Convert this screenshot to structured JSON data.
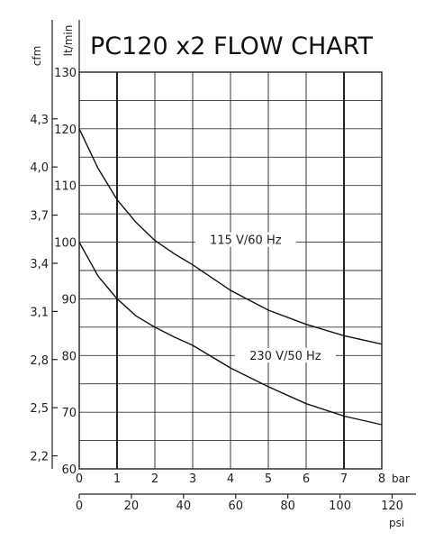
{
  "chart_data": {
    "type": "line",
    "title": "PC120 x2 FLOW CHART",
    "primary_x_axis": {
      "unit": "bar",
      "range": [
        0,
        8
      ],
      "ticks": [
        "0",
        "1",
        "2",
        "3",
        "4",
        "5",
        "6",
        "7",
        "8"
      ]
    },
    "secondary_x_axis": {
      "unit": "psi",
      "ticks": [
        "0",
        "20",
        "40",
        "60",
        "80",
        "100",
        "120"
      ]
    },
    "primary_y_axis": {
      "unit": "lt/min",
      "range": [
        60,
        130
      ],
      "ticks": [
        "60",
        "70",
        "80",
        "90",
        "100",
        "110",
        "120",
        "130"
      ]
    },
    "secondary_y_axis": {
      "unit": "cfm",
      "ticks": [
        "2,2",
        "2,5",
        "2,8",
        "3,1",
        "3,4",
        "3,7",
        "4,0",
        "4,3"
      ]
    },
    "grid": true,
    "series": [
      {
        "name": "115 V/60 Hz",
        "x": [
          0,
          0.5,
          1,
          1.5,
          2,
          2.5,
          3,
          4,
          5,
          6,
          7,
          8
        ],
        "y": [
          120,
          113,
          107.5,
          103.5,
          100.3,
          98,
          96,
          91.5,
          88,
          85.5,
          83.5,
          82
        ]
      },
      {
        "name": "230 V/50 Hz",
        "x": [
          0,
          0.5,
          1,
          1.5,
          2,
          2.5,
          3,
          4,
          5,
          6,
          7,
          8
        ],
        "y": [
          100,
          94,
          90,
          87,
          85,
          83.3,
          81.8,
          77.8,
          74.5,
          71.5,
          69.3,
          67.8
        ]
      }
    ]
  }
}
